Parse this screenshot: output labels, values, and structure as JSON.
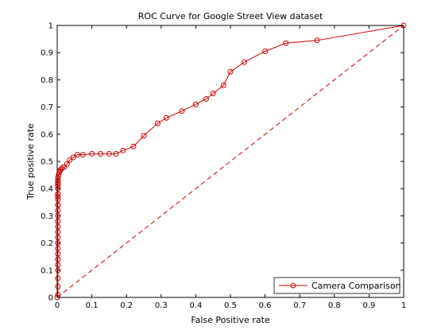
{
  "chart_data": {
    "type": "line",
    "title": "ROC Curve for Google Street View dataset",
    "xlabel": "False Positive rate",
    "ylabel": "True positive rate",
    "xlim": [
      0,
      1
    ],
    "ylim": [
      0,
      1
    ],
    "xticks": [
      0,
      0.1,
      0.2,
      0.3,
      0.4,
      0.5,
      0.6,
      0.7,
      0.8,
      0.9,
      1
    ],
    "yticks": [
      0,
      0.1,
      0.2,
      0.3,
      0.4,
      0.5,
      0.6,
      0.7,
      0.8,
      0.9,
      1
    ],
    "xtick_labels": [
      "0",
      "0.1",
      "0.2",
      "0.3",
      "0.4",
      "0.5",
      "0.6",
      "0.7",
      "0.8",
      "0.9",
      "1"
    ],
    "ytick_labels": [
      "0",
      "0.1",
      "0.2",
      "0.3",
      "0.4",
      "0.5",
      "0.6",
      "0.7",
      "0.8",
      "0.9",
      "1"
    ],
    "grid": false,
    "legend": {
      "position": "bottom-right",
      "entries": [
        "Camera Comparison"
      ]
    },
    "colors": {
      "series": "#cc0000",
      "diagonal": "#cc0000",
      "axes": "#000000"
    },
    "series": [
      {
        "name": "Camera Comparison",
        "marker": "circle",
        "x": [
          0,
          0.002,
          0.002,
          0.002,
          0.002,
          0.002,
          0.002,
          0.002,
          0.002,
          0.002,
          0.002,
          0.002,
          0.002,
          0.002,
          0.002,
          0.002,
          0.002,
          0.002,
          0.002,
          0.002,
          0.002,
          0.002,
          0.002,
          0.002,
          0.002,
          0.002,
          0.002,
          0.002,
          0.002,
          0.002,
          0.002,
          0.004,
          0.006,
          0.008,
          0.01,
          0.014,
          0.02,
          0.028,
          0.036,
          0.046,
          0.058,
          0.074,
          0.1,
          0.125,
          0.15,
          0.17,
          0.19,
          0.22,
          0.25,
          0.29,
          0.315,
          0.36,
          0.4,
          0.43,
          0.45,
          0.48,
          0.5,
          0.54,
          0.6,
          0.66,
          0.75,
          1.0
        ],
        "y": [
          0,
          0.01,
          0.04,
          0.07,
          0.1,
          0.12,
          0.14,
          0.16,
          0.18,
          0.2,
          0.22,
          0.24,
          0.26,
          0.28,
          0.3,
          0.32,
          0.34,
          0.36,
          0.38,
          0.4,
          0.41,
          0.42,
          0.43,
          0.44,
          0.42,
          0.38,
          0.34,
          0.37,
          0.4,
          0.43,
          0.42,
          0.45,
          0.46,
          0.465,
          0.47,
          0.475,
          0.48,
          0.49,
          0.505,
          0.515,
          0.525,
          0.525,
          0.528,
          0.528,
          0.528,
          0.528,
          0.54,
          0.555,
          0.595,
          0.64,
          0.66,
          0.685,
          0.71,
          0.73,
          0.75,
          0.78,
          0.83,
          0.865,
          0.905,
          0.935,
          0.945,
          1.0
        ]
      },
      {
        "name": "",
        "style": "dashed",
        "marker": "none",
        "x": [
          0,
          1
        ],
        "y": [
          0,
          1
        ]
      }
    ]
  }
}
